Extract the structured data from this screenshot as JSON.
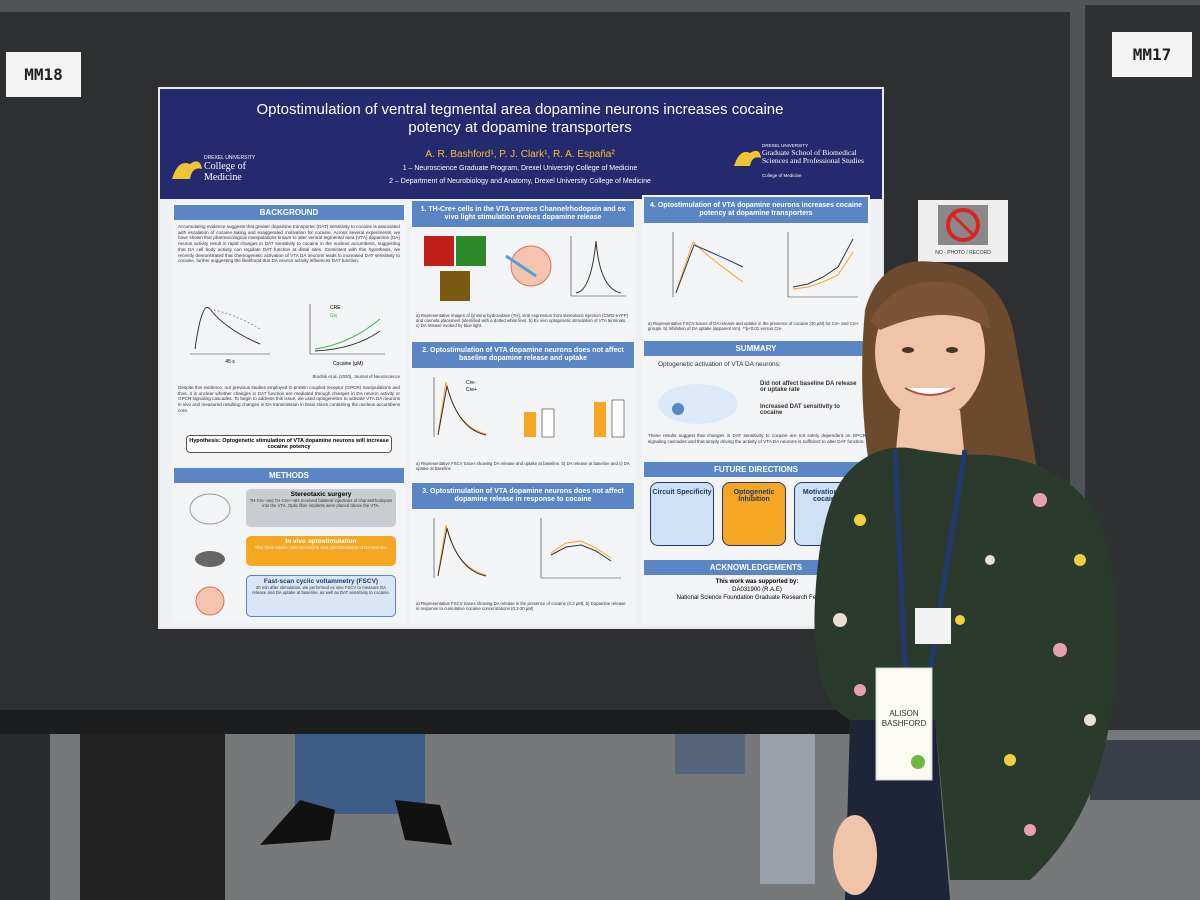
{
  "booth": {
    "left_sign": "MM18",
    "right_sign": "MM17",
    "notice": "NO - PHOTO / RECORD"
  },
  "poster": {
    "title": "Optostimulation of ventral tegmental area dopamine neurons increases cocaine potency at dopamine transporters",
    "authors": "A. R. Bashford¹, P. J. Clark¹, R. A. España²",
    "affiliations": [
      "1 – Neuroscience Graduate Program, Drexel University College of Medicine",
      "2 – Department of Neurobiology and Anatomy, Drexel University College of Medicine"
    ],
    "logo_left": {
      "university": "DREXEL UNIVERSITY",
      "unit": "College of Medicine"
    },
    "logo_right": {
      "university": "DREXEL UNIVERSITY",
      "unit": "Graduate School of Biomedical Sciences and Professional Studies",
      "college": "College of Medicine"
    },
    "background": {
      "heading": "BACKGROUND",
      "paragraphs": [
        "Accumulating evidence suggests that greater dopamine transporter (DAT) sensitivity to cocaine is associated with escalation of cocaine taking and exaggerated motivation for cocaine. Across several experiments, we have shown that pharmacological manipulations known to alter ventral tegmental area (VTA) dopamine (DA) neuron activity result in rapid changes in DAT sensitivity to cocaine in the nucleus accumbens, suggesting that DA cell body activity can regulate DAT function at distal sites. Consistent with this hypothesis, we recently demonstrated that chemogenetic activation of VTA DA neurons leads to increased DAT sensitivity to cocaine, further suggesting the likelihood that DA neuron activity influences DAT function.",
        "Despite this evidence, our previous studies employed G-protein coupled receptor (GPCR) manipulations and thus, it is unclear whether changes in DAT function are mediated through changes in DA neuron activity or GPCR signaling cascades. To begin to address this issue, we used optogenetics to activate VTA DA neurons in vivo and measured resulting changes in DA transmission in brain slices containing the nucleus accumbens core."
      ],
      "figure": {
        "time": "45 s",
        "axis": "Cocaine (µM)",
        "legend": [
          "CRE",
          "Gq"
        ]
      },
      "citation": "Brodnik et al. (2020), Journal of Neuroscience",
      "hypothesis": "Hypothesis: Optogenetic stimulation of VTA dopamine neurons will increase cocaine potency"
    },
    "methods": {
      "heading": "METHODS",
      "steps": [
        {
          "title": "Stereotaxic surgery",
          "text": "TH-Cre- and TH-Cre+ rats received bilateral injections of channelrhodopsin into the VTA. Optic fiber implants were placed above the VTA."
        },
        {
          "title": "In vivo optostimulation",
          "text": "After three weeks, rats received in vivo optostimulation of DA neurons."
        },
        {
          "title": "Fast-scan cyclic voltammetry (FSCV)",
          "text": "30 min after stimulation, we performed ex vivo FSCV to measure DA release and DA uptake at baseline, as well as DAT sensitivity to cocaine."
        }
      ]
    },
    "results": [
      {
        "heading": "1. TH-Cre+ cells in the VTA express Channelrhodopsin and ex vivo light stimulation evokes dopamine release",
        "caption": "a) Representative images of tyrosine hydroxylase (TH), viral expression from stereotaxic injection (ChR2-eYFP) and cannula placement (identified with a dotted white line). b) Ex vivo optogenetic stimulation of VTA terminals. c) DA release evoked by blue light."
      },
      {
        "heading": "2. Optostimulation of VTA dopamine neurons does not affect baseline dopamine release and uptake",
        "caption": "a) Representative FSCV traces showing DA release and uptake at baseline. b) DA release at baseline and c) DA uptake at baseline"
      },
      {
        "heading": "3. Optostimulation of VTA dopamine neurons does not affect dopamine release in response to cocaine",
        "caption": "a) Representative FSCV traces showing DA release in the presence of cocaine (0.3 µM). b) Dopamine release in response to cumulative cocaine concentrations (0.3-30 µM)"
      },
      {
        "heading": "4. Optostimulation of VTA dopamine neurons increases cocaine potency at dopamine transporters",
        "caption": "a) Representative FSCV traces of DA release and uptake in the presence of cocaine (30 µM) for Cre- and Cre+ groups. b) Inhibition of DA uptake (apparent Km). **p<0.01 versus Cre-"
      }
    ],
    "legend": [
      "Cre-",
      "Cre+"
    ],
    "summary": {
      "heading": "SUMMARY",
      "lead": "Optogenetic activation of VTA DA neurons:",
      "bullets": [
        "Did not affect baseline DA release or uptake rate",
        "Increased DAT sensitivity to cocaine"
      ],
      "conclusion": "These results suggest that changes in DAT sensitivity to cocaine are not solely dependent on GPCR signaling cascades and that simply driving the activity of VTA DA neurons is sufficient to alter DAT function."
    },
    "future": {
      "heading": "FUTURE DIRECTIONS",
      "items": [
        "Circuit Specificity",
        "Optogenetic Inhibition",
        "Motivation for cocaine"
      ]
    },
    "acknowledgements": {
      "heading": "ACKNOWLEDGEMENTS",
      "lines": [
        "This work was supported by:",
        "DA031900 (R.A.E)",
        "National Science Foundation Graduate Research Fellowship"
      ]
    }
  },
  "badge": {
    "first": "ALISON",
    "last": "BASHFORD"
  }
}
